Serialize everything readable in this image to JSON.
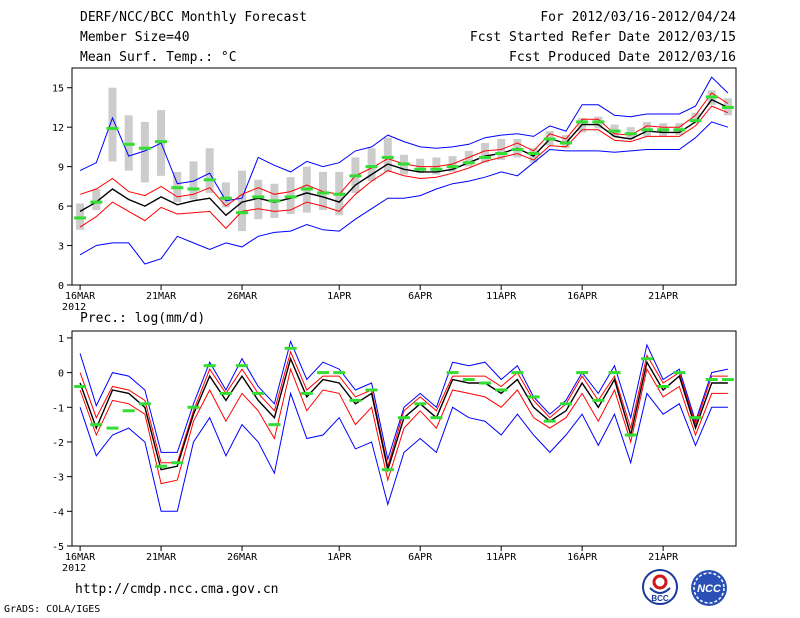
{
  "header": {
    "title": "DERF/NCC/BCC Monthly Forecast",
    "member_size": "Member Size=40",
    "variable": "Mean Surf. Temp.: °C",
    "period": "For 2012/03/16-2012/04/24",
    "started": "Fcst Started Refer Date 2012/03/15",
    "produced": "Fcst Produced Date 2012/03/16"
  },
  "footer": {
    "url": "http://cmdp.ncc.cma.gov.cn",
    "credit": "GrADS: COLA/IGES",
    "logo_bcc": "BCC",
    "logo_ncc": "NCC"
  },
  "colors": {
    "mean": "#000000",
    "spread": "#ff0000",
    "extreme": "#0000ff",
    "box": "#cccccc",
    "marker": "#33dd33"
  },
  "chart_data": [
    {
      "type": "line",
      "name": "temperature",
      "title": "Mean Surf. Temp.: °C",
      "x_start_day": 1,
      "ylim": [
        0,
        16.5
      ],
      "yticks": [
        0,
        3,
        6,
        9,
        12,
        15
      ],
      "xticks": [
        {
          "day": 1,
          "label": "16MAR",
          "sub": "2012"
        },
        {
          "day": 6,
          "label": "21MAR"
        },
        {
          "day": 11,
          "label": "26MAR"
        },
        {
          "day": 17,
          "label": "1APR"
        },
        {
          "day": 22,
          "label": "6APR"
        },
        {
          "day": 27,
          "label": "11APR"
        },
        {
          "day": 32,
          "label": "16APR"
        },
        {
          "day": 37,
          "label": "21APR"
        }
      ],
      "series": [
        {
          "name": "maximum",
          "color": "#0000ff",
          "values": [
            8.7,
            9.3,
            12.7,
            9.8,
            10.2,
            10.8,
            7.7,
            7.9,
            8.5,
            6.4,
            6.6,
            9.7,
            9.1,
            8.6,
            9.4,
            9.0,
            9.3,
            10.2,
            10.5,
            11.4,
            10.9,
            10.5,
            10.4,
            10.5,
            10.7,
            11.2,
            11.4,
            11.5,
            11.3,
            12.1,
            11.7,
            13.7,
            13.7,
            12.9,
            12.8,
            13.0,
            13.0,
            13.0,
            13.6,
            15.8,
            14.6
          ]
        },
        {
          "name": "upper",
          "color": "#ff0000",
          "values": [
            6.9,
            7.3,
            8.1,
            7.1,
            6.8,
            7.5,
            6.7,
            6.9,
            7.4,
            6.0,
            6.9,
            7.4,
            6.9,
            7.1,
            7.6,
            7.1,
            6.9,
            8.3,
            8.9,
            9.6,
            9.2,
            9.0,
            9.0,
            9.2,
            9.7,
            10.2,
            10.3,
            10.8,
            10.2,
            11.5,
            11.1,
            12.6,
            12.6,
            11.5,
            11.4,
            12.1,
            12.0,
            12.0,
            12.9,
            14.6,
            13.8
          ]
        },
        {
          "name": "mean",
          "color": "#000000",
          "values": [
            5.6,
            6.3,
            7.3,
            6.5,
            6.0,
            6.7,
            6.1,
            6.4,
            6.6,
            5.3,
            6.3,
            6.6,
            6.3,
            6.6,
            7.0,
            6.7,
            6.3,
            7.6,
            8.4,
            9.2,
            8.8,
            8.6,
            8.6,
            8.8,
            9.3,
            9.8,
            10.0,
            10.4,
            9.8,
            11.1,
            10.8,
            12.2,
            12.2,
            11.3,
            11.1,
            11.7,
            11.6,
            11.6,
            12.4,
            14.1,
            13.5
          ]
        },
        {
          "name": "lower",
          "color": "#ff0000",
          "values": [
            4.4,
            5.2,
            6.3,
            5.6,
            4.9,
            5.9,
            5.4,
            5.5,
            5.6,
            4.3,
            5.6,
            5.8,
            5.6,
            5.7,
            6.3,
            6.0,
            5.6,
            6.9,
            7.9,
            8.7,
            8.3,
            8.1,
            8.2,
            8.5,
            8.9,
            9.4,
            9.7,
            10.0,
            9.5,
            10.6,
            10.5,
            11.8,
            11.8,
            11.0,
            10.9,
            11.3,
            11.3,
            11.3,
            12.1,
            13.6,
            13.1
          ]
        },
        {
          "name": "minimum",
          "color": "#0000ff",
          "values": [
            2.3,
            3.0,
            3.2,
            3.2,
            1.6,
            2.0,
            3.7,
            3.2,
            2.7,
            3.2,
            2.9,
            3.7,
            4.0,
            4.1,
            4.6,
            4.2,
            4.1,
            5.0,
            5.8,
            6.6,
            6.6,
            6.8,
            7.3,
            7.7,
            7.9,
            8.2,
            8.6,
            8.3,
            9.3,
            10.3,
            10.2,
            10.2,
            10.2,
            10.1,
            10.2,
            10.3,
            10.3,
            10.3,
            11.2,
            12.4,
            12.0
          ]
        }
      ],
      "observed_markers": [
        5.1,
        6.3,
        11.9,
        10.7,
        10.4,
        10.9,
        7.4,
        7.3,
        8.0,
        6.6,
        5.5,
        6.7,
        6.4,
        6.7,
        7.3,
        7.0,
        6.9,
        8.3,
        9.0,
        9.7,
        9.2,
        8.8,
        8.8,
        9.0,
        9.3,
        9.7,
        10.0,
        10.3,
        10.0,
        11.1,
        10.8,
        12.4,
        12.4,
        11.7,
        11.5,
        11.8,
        11.8,
        11.8,
        12.5,
        14.3,
        13.5
      ],
      "boxes": [
        [
          4.2,
          6.2
        ],
        [
          5.7,
          7.3
        ],
        [
          9.4,
          15.0
        ],
        [
          8.7,
          12.9
        ],
        [
          7.8,
          12.4
        ],
        [
          8.3,
          13.3
        ],
        [
          6.3,
          8.6
        ],
        [
          6.5,
          9.4
        ],
        [
          7.0,
          10.4
        ],
        [
          5.9,
          7.8
        ],
        [
          4.1,
          8.7
        ],
        [
          5.0,
          8.0
        ],
        [
          5.1,
          7.7
        ],
        [
          5.4,
          8.2
        ],
        [
          5.5,
          9.0
        ],
        [
          5.7,
          8.6
        ],
        [
          5.3,
          8.6
        ],
        [
          7.0,
          9.7
        ],
        [
          7.9,
          10.4
        ],
        [
          8.6,
          11.2
        ],
        [
          8.4,
          9.9
        ],
        [
          8.5,
          9.6
        ],
        [
          8.4,
          9.7
        ],
        [
          8.6,
          9.8
        ],
        [
          9.0,
          10.2
        ],
        [
          9.3,
          10.8
        ],
        [
          9.5,
          11.1
        ],
        [
          9.7,
          11.1
        ],
        [
          9.3,
          10.4
        ],
        [
          10.6,
          11.7
        ],
        [
          10.4,
          11.4
        ],
        [
          11.6,
          12.7
        ],
        [
          11.9,
          12.8
        ],
        [
          11.3,
          12.2
        ],
        [
          11.1,
          12.0
        ],
        [
          11.3,
          12.4
        ],
        [
          11.3,
          12.3
        ],
        [
          11.4,
          12.3
        ],
        [
          12.3,
          13.1
        ],
        [
          13.7,
          14.8
        ],
        [
          12.9,
          14.2
        ]
      ]
    },
    {
      "type": "line",
      "name": "precipitation",
      "title": "Prec.: log(mm/d)",
      "x_start_day": 1,
      "ylim": [
        -5,
        1.2
      ],
      "yticks": [
        -5,
        -4,
        -3,
        -2,
        -1,
        0,
        1
      ],
      "xticks": [
        {
          "day": 1,
          "label": "16MAR",
          "sub": "2012"
        },
        {
          "day": 6,
          "label": "21MAR"
        },
        {
          "day": 11,
          "label": "26MAR"
        },
        {
          "day": 17,
          "label": "1APR"
        },
        {
          "day": 22,
          "label": "6APR"
        },
        {
          "day": 27,
          "label": "11APR"
        },
        {
          "day": 32,
          "label": "16APR"
        },
        {
          "day": 37,
          "label": "21APR"
        }
      ],
      "series": [
        {
          "name": "maximum",
          "color": "#0000ff",
          "values": [
            0.55,
            -0.95,
            0.0,
            -0.1,
            -0.5,
            -2.3,
            -2.3,
            -0.9,
            0.3,
            -0.5,
            0.4,
            -0.4,
            -0.9,
            0.9,
            -0.2,
            0.3,
            0.1,
            -0.5,
            -0.3,
            -2.5,
            -1.0,
            -0.6,
            -1.0,
            0.3,
            0.2,
            0.3,
            -0.2,
            0.2,
            -0.7,
            -1.2,
            -0.8,
            0.0,
            -0.6,
            0.2,
            -1.3,
            0.8,
            -0.2,
            0.1,
            -1.4,
            0.0,
            0.1
          ]
        },
        {
          "name": "upper",
          "color": "#ff0000",
          "values": [
            0.0,
            -1.3,
            -0.4,
            -0.5,
            -0.8,
            -2.6,
            -2.6,
            -1.1,
            0.1,
            -0.6,
            0.1,
            -0.6,
            -1.1,
            0.6,
            -0.5,
            -0.1,
            -0.1,
            -0.7,
            -0.5,
            -2.7,
            -1.1,
            -0.7,
            -1.1,
            -0.1,
            -0.1,
            -0.1,
            -0.4,
            0.0,
            -0.8,
            -1.3,
            -0.9,
            -0.1,
            -0.8,
            -0.1,
            -1.6,
            0.5,
            -0.3,
            0.0,
            -1.5,
            -0.1,
            -0.1
          ]
        },
        {
          "name": "mean",
          "color": "#000000",
          "values": [
            -0.3,
            -1.6,
            -0.5,
            -0.6,
            -1.0,
            -2.8,
            -2.7,
            -1.2,
            -0.1,
            -0.8,
            -0.1,
            -0.8,
            -1.3,
            0.4,
            -0.7,
            -0.2,
            -0.3,
            -0.9,
            -0.6,
            -2.8,
            -1.3,
            -0.9,
            -1.3,
            -0.2,
            -0.3,
            -0.3,
            -0.6,
            -0.2,
            -1.0,
            -1.4,
            -1.1,
            -0.3,
            -1.0,
            -0.2,
            -1.8,
            0.3,
            -0.5,
            -0.1,
            -1.6,
            -0.3,
            -0.3
          ]
        },
        {
          "name": "lower",
          "color": "#ff0000",
          "values": [
            -0.5,
            -1.8,
            -0.8,
            -0.9,
            -1.2,
            -3.2,
            -3.1,
            -1.4,
            -0.5,
            -1.4,
            -0.6,
            -1.1,
            -1.9,
            0.1,
            -1.1,
            -0.5,
            -0.6,
            -1.5,
            -1.0,
            -3.1,
            -1.6,
            -1.1,
            -1.6,
            -0.5,
            -0.6,
            -0.7,
            -1.0,
            -0.5,
            -1.3,
            -1.6,
            -1.3,
            -0.6,
            -1.4,
            -0.5,
            -2.0,
            0.1,
            -0.7,
            -0.4,
            -1.8,
            -0.6,
            -0.6
          ]
        },
        {
          "name": "minimum",
          "color": "#0000ff",
          "values": [
            -1.0,
            -2.4,
            -1.8,
            -1.6,
            -2.0,
            -4.0,
            -4.0,
            -2.0,
            -1.3,
            -2.4,
            -1.5,
            -2.0,
            -2.9,
            -0.6,
            -1.9,
            -1.8,
            -1.3,
            -2.2,
            -2.0,
            -3.8,
            -2.3,
            -1.9,
            -2.3,
            -1.0,
            -1.3,
            -1.4,
            -1.8,
            -1.2,
            -1.8,
            -2.3,
            -1.8,
            -1.2,
            -2.1,
            -1.2,
            -2.6,
            -0.6,
            -1.2,
            -0.9,
            -2.1,
            -1.0,
            -1.0
          ]
        }
      ],
      "observed_markers": [
        -0.4,
        -1.5,
        -1.6,
        -1.1,
        -0.9,
        -2.7,
        -2.6,
        -1.0,
        0.2,
        -0.6,
        0.2,
        -0.6,
        -1.5,
        0.7,
        -0.6,
        0.0,
        0.0,
        -0.8,
        -0.5,
        -2.8,
        -1.3,
        -0.9,
        -1.3,
        0.0,
        -0.2,
        -0.3,
        -0.5,
        0.0,
        -0.7,
        -1.4,
        -0.9,
        0.0,
        -0.8,
        0.0,
        -1.8,
        0.4,
        -0.4,
        0.0,
        -1.3,
        -0.2,
        -0.2
      ]
    }
  ]
}
